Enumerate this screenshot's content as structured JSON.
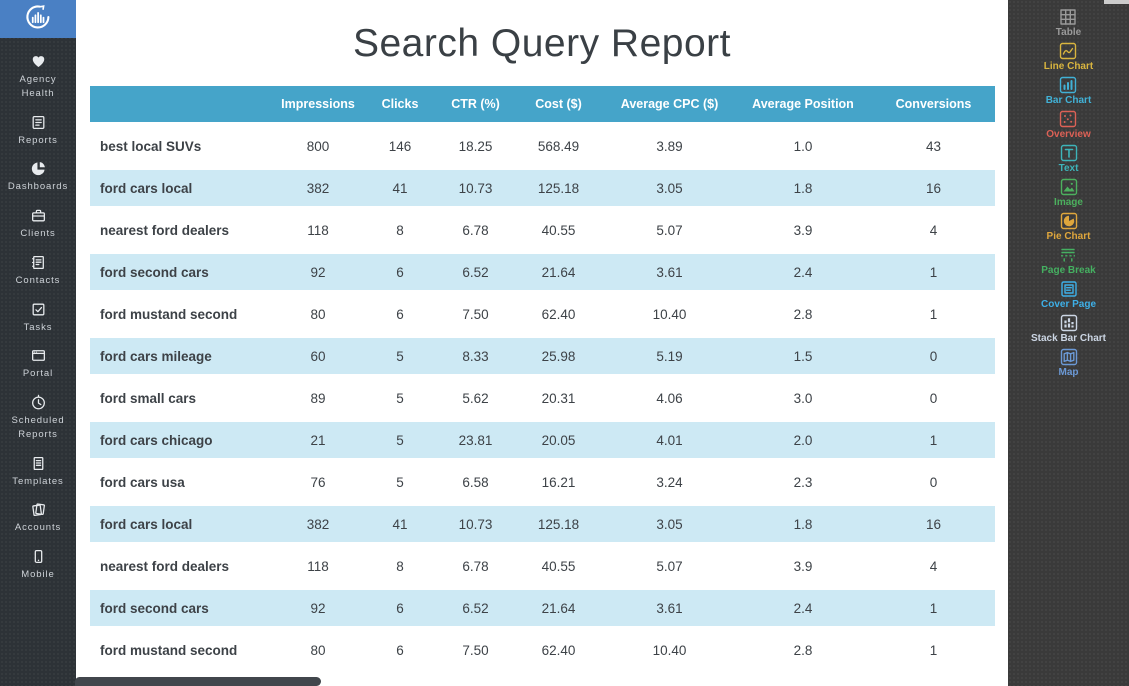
{
  "brand": {
    "logo_icon": "bar-chart-circle-logo"
  },
  "nav": {
    "items": [
      {
        "id": "agency-health",
        "label": "Agency Health",
        "icon": "heart-icon"
      },
      {
        "id": "reports",
        "label": "Reports",
        "icon": "report-icon"
      },
      {
        "id": "dashboards",
        "label": "Dashboards",
        "icon": "pie-dashboard-icon"
      },
      {
        "id": "clients",
        "label": "Clients",
        "icon": "briefcase-icon"
      },
      {
        "id": "contacts",
        "label": "Contacts",
        "icon": "address-book-icon"
      },
      {
        "id": "tasks",
        "label": "Tasks",
        "icon": "checkbox-icon"
      },
      {
        "id": "portal",
        "label": "Portal",
        "icon": "browser-icon"
      },
      {
        "id": "scheduled-reports",
        "label": "Scheduled Reports",
        "icon": "clock-icon"
      },
      {
        "id": "templates",
        "label": "Templates",
        "icon": "document-icon"
      },
      {
        "id": "accounts",
        "label": "Accounts",
        "icon": "pages-icon"
      },
      {
        "id": "mobile",
        "label": "Mobile",
        "icon": "smartphone-icon"
      }
    ]
  },
  "report": {
    "title": "Search Query Report"
  },
  "table": {
    "columns": [
      "",
      "Impressions",
      "Clicks",
      "CTR (%)",
      "Cost ($)",
      "Average CPC ($)",
      "Average Position",
      "Conversions"
    ],
    "rows": [
      [
        "best local SUVs",
        "800",
        "146",
        "18.25",
        "568.49",
        "3.89",
        "1.0",
        "43"
      ],
      [
        "ford cars local",
        "382",
        "41",
        "10.73",
        "125.18",
        "3.05",
        "1.8",
        "16"
      ],
      [
        "nearest ford dealers",
        "118",
        "8",
        "6.78",
        "40.55",
        "5.07",
        "3.9",
        "4"
      ],
      [
        "ford second cars",
        "92",
        "6",
        "6.52",
        "21.64",
        "3.61",
        "2.4",
        "1"
      ],
      [
        "ford mustand second",
        "80",
        "6",
        "7.50",
        "62.40",
        "10.40",
        "2.8",
        "1"
      ],
      [
        "ford cars mileage",
        "60",
        "5",
        "8.33",
        "25.98",
        "5.19",
        "1.5",
        "0"
      ],
      [
        "ford small cars",
        "89",
        "5",
        "5.62",
        "20.31",
        "4.06",
        "3.0",
        "0"
      ],
      [
        "ford cars chicago",
        "21",
        "5",
        "23.81",
        "20.05",
        "4.01",
        "2.0",
        "1"
      ],
      [
        "ford cars usa",
        "76",
        "5",
        "6.58",
        "16.21",
        "3.24",
        "2.3",
        "0"
      ],
      [
        "ford cars local",
        "382",
        "41",
        "10.73",
        "125.18",
        "3.05",
        "1.8",
        "16"
      ],
      [
        "nearest ford dealers",
        "118",
        "8",
        "6.78",
        "40.55",
        "5.07",
        "3.9",
        "4"
      ],
      [
        "ford second cars",
        "92",
        "6",
        "6.52",
        "21.64",
        "3.61",
        "2.4",
        "1"
      ],
      [
        "ford mustand second",
        "80",
        "6",
        "7.50",
        "62.40",
        "10.40",
        "2.8",
        "1"
      ]
    ]
  },
  "widgets": {
    "items": [
      {
        "id": "table",
        "label": "Table",
        "icon": "table-grid-icon",
        "color": "#9a9a9a"
      },
      {
        "id": "line-chart",
        "label": "Line Chart",
        "icon": "line-chart-icon",
        "color": "#d9b53f"
      },
      {
        "id": "bar-chart",
        "label": "Bar Chart",
        "icon": "bar-chart-icon",
        "color": "#41b1d6"
      },
      {
        "id": "overview",
        "label": "Overview",
        "icon": "scatter-overview-icon",
        "color": "#dd6156"
      },
      {
        "id": "text",
        "label": "Text",
        "icon": "text-icon",
        "color": "#3db4b9"
      },
      {
        "id": "image",
        "label": "Image",
        "icon": "image-icon",
        "color": "#4cb05e"
      },
      {
        "id": "pie-chart",
        "label": "Pie Chart",
        "icon": "pie-chart-icon",
        "color": "#dfa63c"
      },
      {
        "id": "page-break",
        "label": "Page Break",
        "icon": "page-break-icon",
        "color": "#45b061"
      },
      {
        "id": "cover-page",
        "label": "Cover Page",
        "icon": "cover-page-icon",
        "color": "#3eb0e8"
      },
      {
        "id": "stack-bar-chart",
        "label": "Stack Bar Chart",
        "icon": "stack-bar-chart-icon",
        "color": "#ccd6e4"
      },
      {
        "id": "map",
        "label": "Map",
        "icon": "map-icon",
        "color": "#6b99d6"
      }
    ]
  },
  "colors": {
    "header_bg": "#45a4c9",
    "row_alt_bg": "#cde9f4",
    "logo_bg": "#4a80c4",
    "left_sidebar_bg": "#2d3237",
    "right_sidebar_bg": "#3a3a3a",
    "text": "#3d4247"
  }
}
